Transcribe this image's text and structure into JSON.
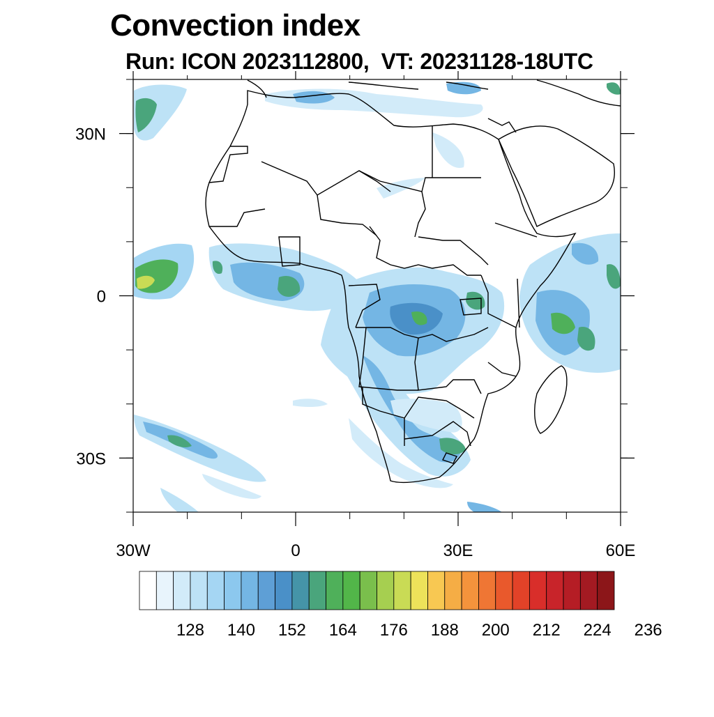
{
  "title": "Convection index",
  "subtitle": {
    "run_label": "Run: ICON 2023112800,",
    "vt_label": "VT: 20231128-18UTC"
  },
  "map": {
    "region": "Africa",
    "lon_range": [
      -30,
      60
    ],
    "lat_range": [
      -40,
      40
    ],
    "lon_ticks": [
      {
        "value": -30,
        "label": "30W"
      },
      {
        "value": 0,
        "label": "0"
      },
      {
        "value": 30,
        "label": "30E"
      },
      {
        "value": 60,
        "label": "60E"
      }
    ],
    "lat_ticks": [
      {
        "value": 30,
        "label": "30N"
      },
      {
        "value": 0,
        "label": "0"
      },
      {
        "value": -30,
        "label": "30S"
      }
    ]
  },
  "colorbar": {
    "min": 116,
    "step": 4,
    "labels": [
      "128",
      "140",
      "152",
      "164",
      "176",
      "188",
      "200",
      "212",
      "224",
      "236"
    ],
    "colors": [
      "#ffffff",
      "#e8f4fc",
      "#d2ebf9",
      "#bde2f6",
      "#a5d6f3",
      "#8cc8ee",
      "#74b6e4",
      "#5e9fd6",
      "#4a90c8",
      "#4594a8",
      "#4aa57c",
      "#4fb05a",
      "#52b649",
      "#7abf4c",
      "#a6cf50",
      "#c9db55",
      "#ede25a",
      "#f8c852",
      "#f5ad45",
      "#f4933c",
      "#ef7634",
      "#e9592c",
      "#e24228",
      "#d92e2a",
      "#c8242a",
      "#b51d25",
      "#a31a22",
      "#8c1619"
    ]
  }
}
